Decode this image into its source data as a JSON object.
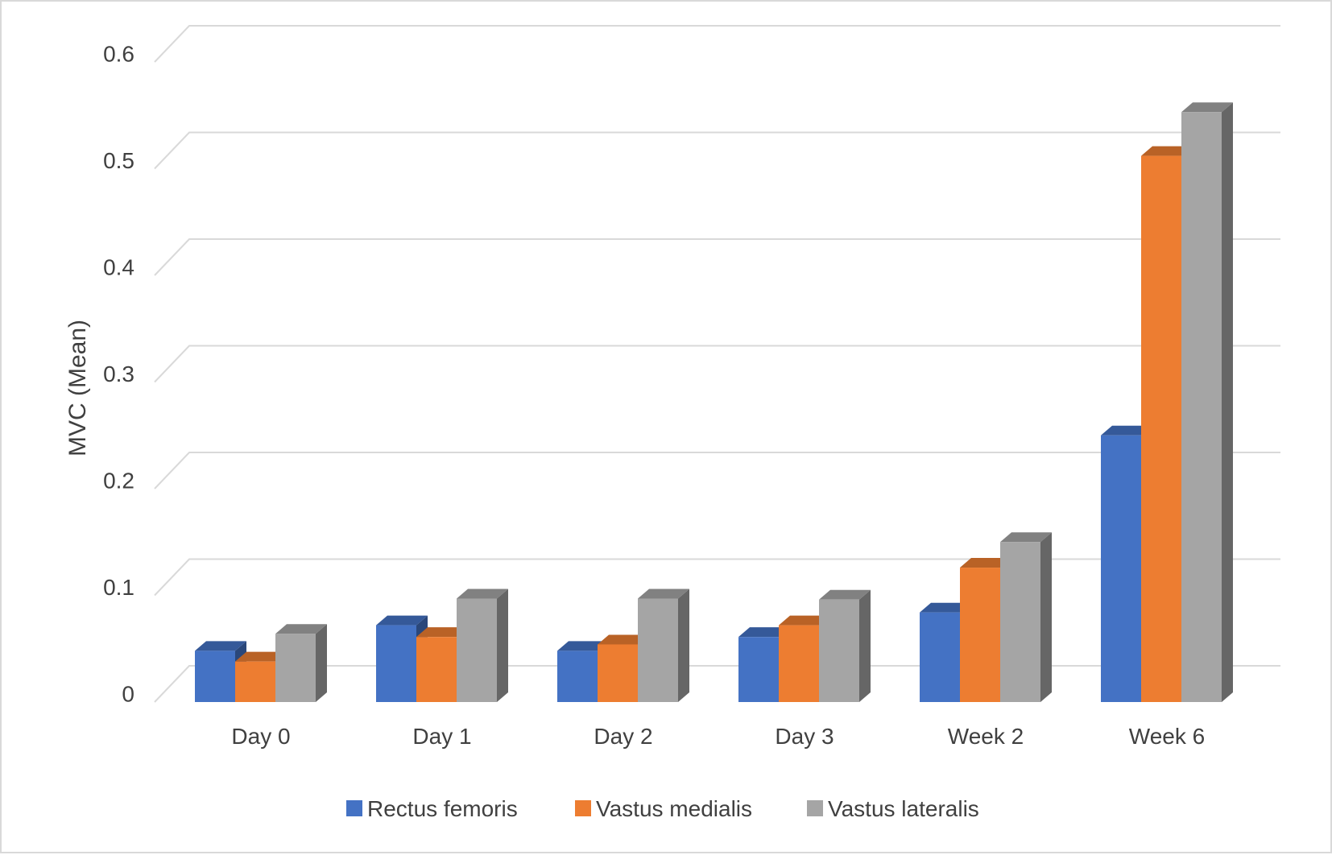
{
  "chart_data": {
    "type": "bar",
    "style": "3d-clustered-column",
    "title": "",
    "xlabel": "",
    "ylabel": "MVC (Mean)",
    "ylim": [
      0,
      0.6
    ],
    "yticks": [
      "0",
      "0.1",
      "0.2",
      "0.3",
      "0.4",
      "0.5",
      "0.6"
    ],
    "categories": [
      "Day 0",
      "Day 1",
      "Day 2",
      "Day 3",
      "Week 2",
      "Week 6"
    ],
    "series": [
      {
        "name": "Rectus femoris",
        "color": "#4472c4",
        "values": [
          0.048,
          0.072,
          0.048,
          0.061,
          0.084,
          0.25
        ]
      },
      {
        "name": "Vastus medialis",
        "color": "#ed7d31",
        "values": [
          0.038,
          0.061,
          0.054,
          0.072,
          0.126,
          0.512
        ]
      },
      {
        "name": "Vastus lateralis",
        "color": "#a5a5a5",
        "values": [
          0.064,
          0.097,
          0.097,
          0.096,
          0.15,
          0.553
        ]
      }
    ],
    "grid": true,
    "legend_position": "bottom"
  }
}
